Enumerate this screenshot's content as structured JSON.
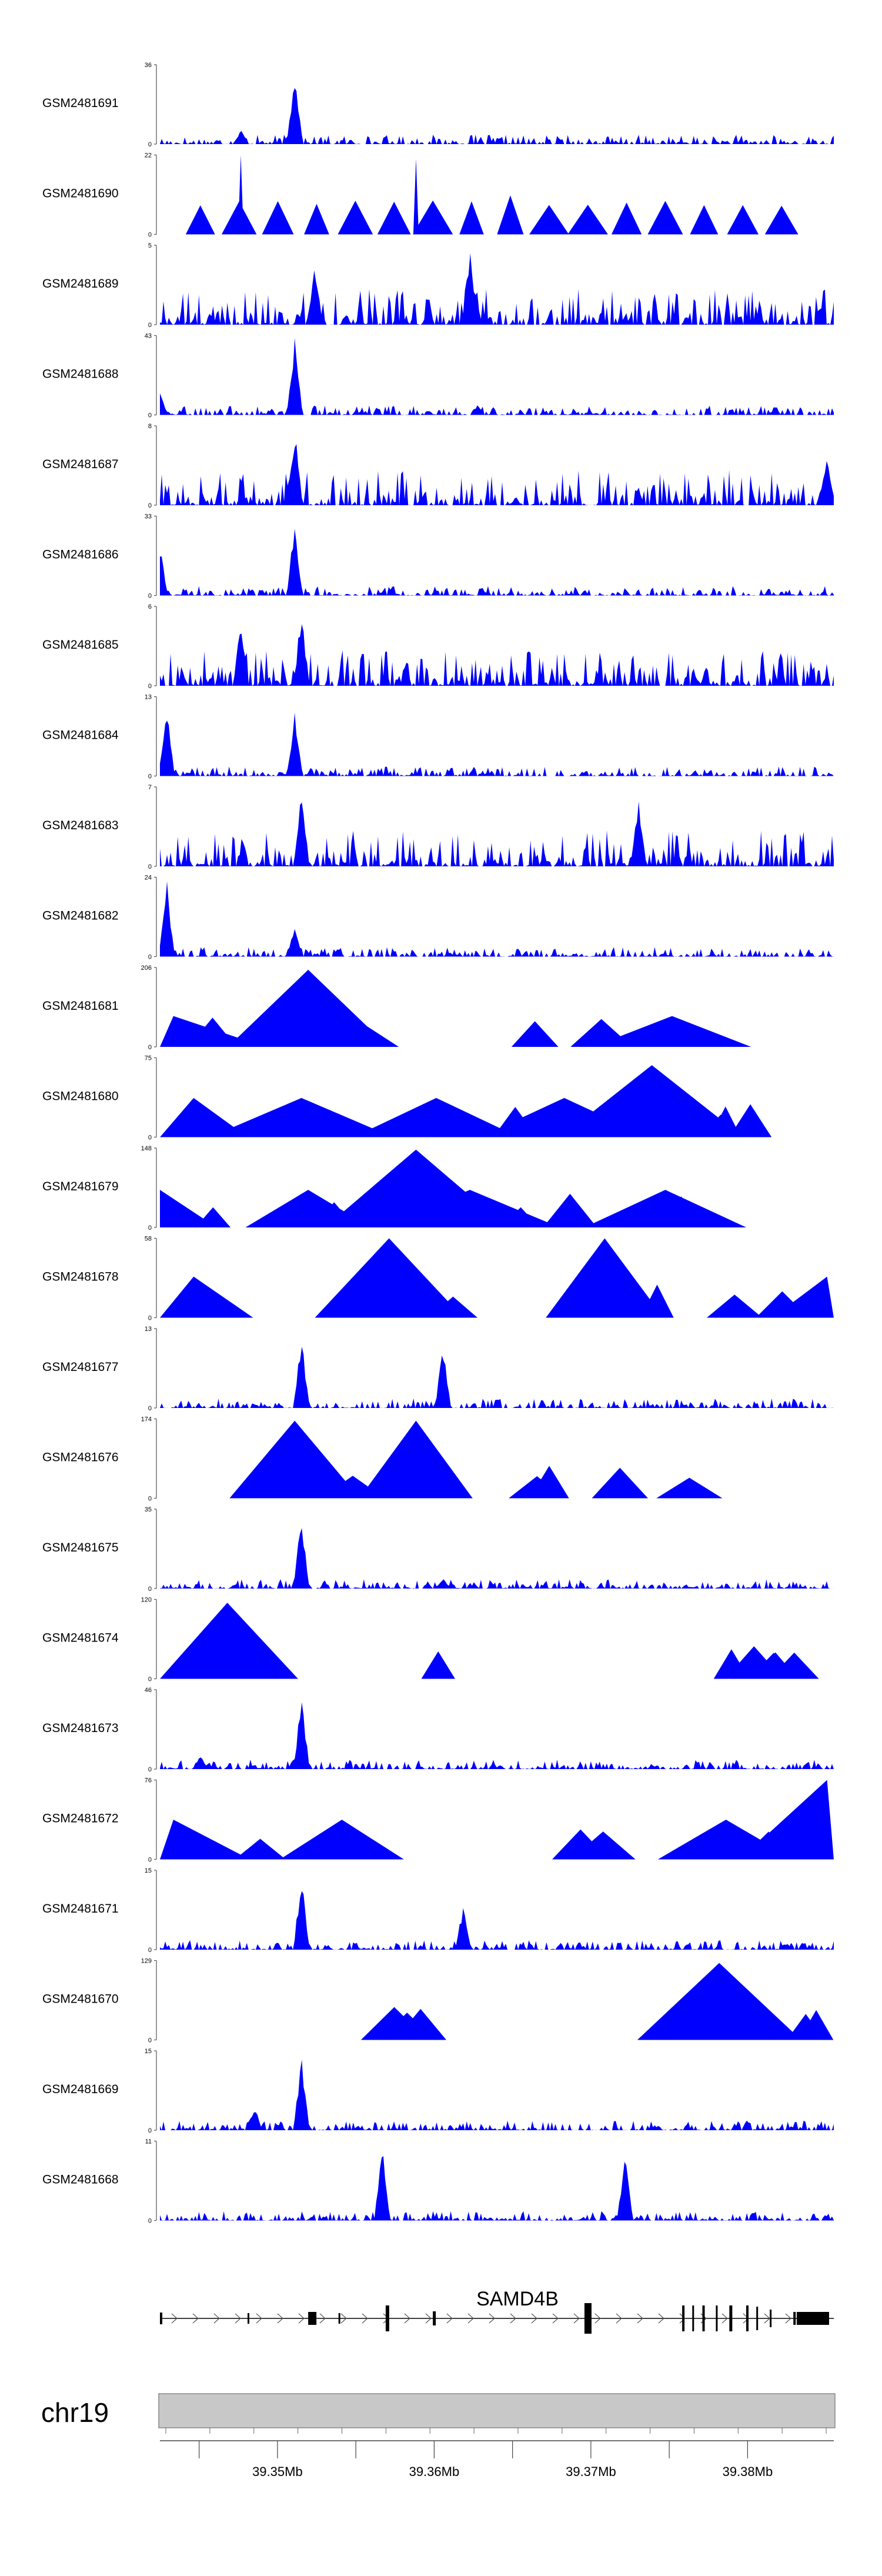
{
  "colors": {
    "track_fill": "#0000ff",
    "axis": "#555555",
    "chrom_band": "#c8c8c8",
    "gene": "#000000"
  },
  "chart_data": {
    "type": "area",
    "title": "",
    "xlabel": "",
    "ylabel": "",
    "x_range_mb": [
      39.3425,
      39.3855
    ],
    "chromosome": "chr19",
    "gene_label": "SAMD4B",
    "x_ticks": [
      {
        "value": 39.345,
        "label": ""
      },
      {
        "value": 39.35,
        "label": "39.35Mb"
      },
      {
        "value": 39.355,
        "label": ""
      },
      {
        "value": 39.36,
        "label": "39.36Mb"
      },
      {
        "value": 39.365,
        "label": ""
      },
      {
        "value": 39.37,
        "label": "39.37Mb"
      },
      {
        "value": 39.375,
        "label": ""
      },
      {
        "value": 39.38,
        "label": "39.38Mb"
      }
    ],
    "tracks": [
      {
        "name": "GSM2481691",
        "ymax": 36,
        "ymin": 0,
        "style": "dense",
        "peaks": [
          [
            0.2,
            35
          ],
          [
            0.12,
            7
          ]
        ]
      },
      {
        "name": "GSM2481690",
        "ymax": 22,
        "ymin": 0,
        "style": "sparse",
        "peaks": [
          [
            0.12,
            22
          ],
          [
            0.38,
            21
          ]
        ]
      },
      {
        "name": "GSM2481689",
        "ymax": 5,
        "ymin": 0,
        "style": "dense",
        "peaks": [
          [
            0.46,
            5
          ],
          [
            0.23,
            4
          ]
        ]
      },
      {
        "name": "GSM2481688",
        "ymax": 43,
        "ymin": 0,
        "style": "dense",
        "peaks": [
          [
            0.2,
            42
          ],
          [
            0.0,
            13
          ]
        ]
      },
      {
        "name": "GSM2481687",
        "ymax": 8,
        "ymin": 0,
        "style": "dense",
        "peaks": [
          [
            0.2,
            8
          ],
          [
            0.99,
            6
          ]
        ]
      },
      {
        "name": "GSM2481686",
        "ymax": 33,
        "ymin": 0,
        "style": "dense",
        "peaks": [
          [
            0.2,
            32
          ],
          [
            0.0,
            21
          ]
        ]
      },
      {
        "name": "GSM2481685",
        "ymax": 6,
        "ymin": 0,
        "style": "dense",
        "peaks": [
          [
            0.21,
            6
          ],
          [
            0.12,
            5
          ]
        ]
      },
      {
        "name": "GSM2481684",
        "ymax": 13,
        "ymin": 0,
        "style": "dense",
        "peaks": [
          [
            0.01,
            13
          ],
          [
            0.2,
            11
          ]
        ]
      },
      {
        "name": "GSM2481683",
        "ymax": 7,
        "ymin": 0,
        "style": "dense",
        "peaks": [
          [
            0.21,
            7
          ],
          [
            0.71,
            6
          ]
        ]
      },
      {
        "name": "GSM2481682",
        "ymax": 24,
        "ymin": 0,
        "style": "dense",
        "peaks": [
          [
            0.01,
            24
          ],
          [
            0.2,
            10
          ]
        ]
      },
      {
        "name": "GSM2481681",
        "ymax": 206,
        "ymin": 0,
        "style": "triangles",
        "peaks": [
          [
            0.02,
            80
          ],
          [
            0.22,
            200
          ],
          [
            0.22,
            80
          ],
          [
            0.76,
            80
          ]
        ]
      },
      {
        "name": "GSM2481680",
        "ymax": 75,
        "ymin": 0,
        "style": "triangles",
        "peaks": [
          [
            0.05,
            37
          ],
          [
            0.21,
            37
          ],
          [
            0.41,
            37
          ],
          [
            0.6,
            37
          ],
          [
            0.73,
            68
          ]
        ]
      },
      {
        "name": "GSM2481679",
        "ymax": 148,
        "ymin": 0,
        "style": "triangles",
        "peaks": [
          [
            0.0,
            70
          ],
          [
            0.22,
            70
          ],
          [
            0.38,
            145
          ],
          [
            0.46,
            70
          ],
          [
            0.75,
            70
          ]
        ]
      },
      {
        "name": "GSM2481678",
        "ymax": 58,
        "ymin": 0,
        "style": "triangles",
        "peaks": [
          [
            0.05,
            30
          ],
          [
            0.34,
            58
          ],
          [
            0.66,
            58
          ],
          [
            0.99,
            30
          ]
        ]
      },
      {
        "name": "GSM2481677",
        "ymax": 13,
        "ymin": 0,
        "style": "dense",
        "peaks": [
          [
            0.21,
            13
          ],
          [
            0.42,
            11
          ]
        ]
      },
      {
        "name": "GSM2481676",
        "ymax": 174,
        "ymin": 0,
        "style": "triangles",
        "peaks": [
          [
            0.2,
            170
          ],
          [
            0.38,
            170
          ]
        ]
      },
      {
        "name": "GSM2481675",
        "ymax": 35,
        "ymin": 0,
        "style": "dense",
        "peaks": [
          [
            0.21,
            35
          ],
          [
            0.42,
            5
          ]
        ]
      },
      {
        "name": "GSM2481674",
        "ymax": 120,
        "ymin": 0,
        "style": "triangles",
        "peaks": [
          [
            0.1,
            115
          ]
        ]
      },
      {
        "name": "GSM2481673",
        "ymax": 46,
        "ymin": 0,
        "style": "dense",
        "peaks": [
          [
            0.21,
            45
          ],
          [
            0.06,
            9
          ]
        ]
      },
      {
        "name": "GSM2481672",
        "ymax": 76,
        "ymin": 0,
        "style": "triangles",
        "peaks": [
          [
            0.02,
            38
          ],
          [
            0.27,
            38
          ],
          [
            0.84,
            38
          ],
          [
            0.99,
            76
          ]
        ]
      },
      {
        "name": "GSM2481671",
        "ymax": 15,
        "ymin": 0,
        "style": "dense",
        "peaks": [
          [
            0.21,
            15
          ],
          [
            0.45,
            9
          ]
        ]
      },
      {
        "name": "GSM2481670",
        "ymax": 129,
        "ymin": 0,
        "style": "triangles",
        "peaks": [
          [
            0.83,
            125
          ]
        ]
      },
      {
        "name": "GSM2481669",
        "ymax": 15,
        "ymin": 0,
        "style": "dense",
        "peaks": [
          [
            0.21,
            15
          ],
          [
            0.14,
            5
          ]
        ]
      },
      {
        "name": "GSM2481668",
        "ymax": 11,
        "ymin": 0,
        "style": "dense",
        "peaks": [
          [
            0.33,
            11
          ],
          [
            0.69,
            10
          ]
        ]
      }
    ]
  }
}
